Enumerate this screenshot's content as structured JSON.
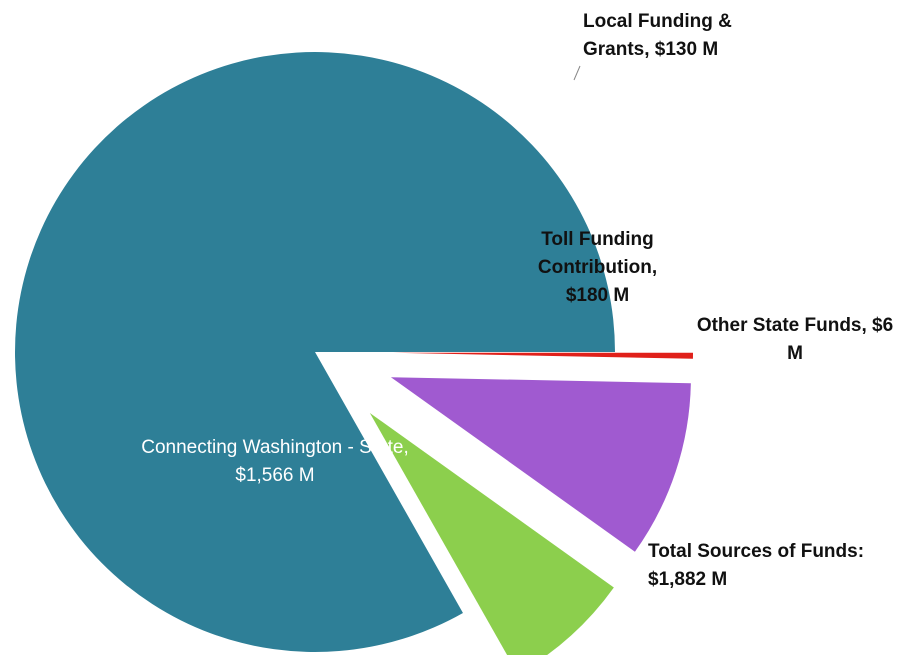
{
  "chart_data": {
    "type": "pie",
    "values": [
      1566,
      130,
      180,
      6
    ],
    "value_labels": [
      "Connecting Washington - State, $1,566 M",
      "Local Funding & Grants, $130 M",
      "Toll Funding Contribution, $180 M",
      "Other State Funds, $6 M"
    ],
    "colors": [
      "#2e7f97",
      "#8ccf4d",
      "#a05ad0",
      "#e0201a"
    ],
    "annotation": "Total Sources of Funds: $1,882 M"
  }
}
